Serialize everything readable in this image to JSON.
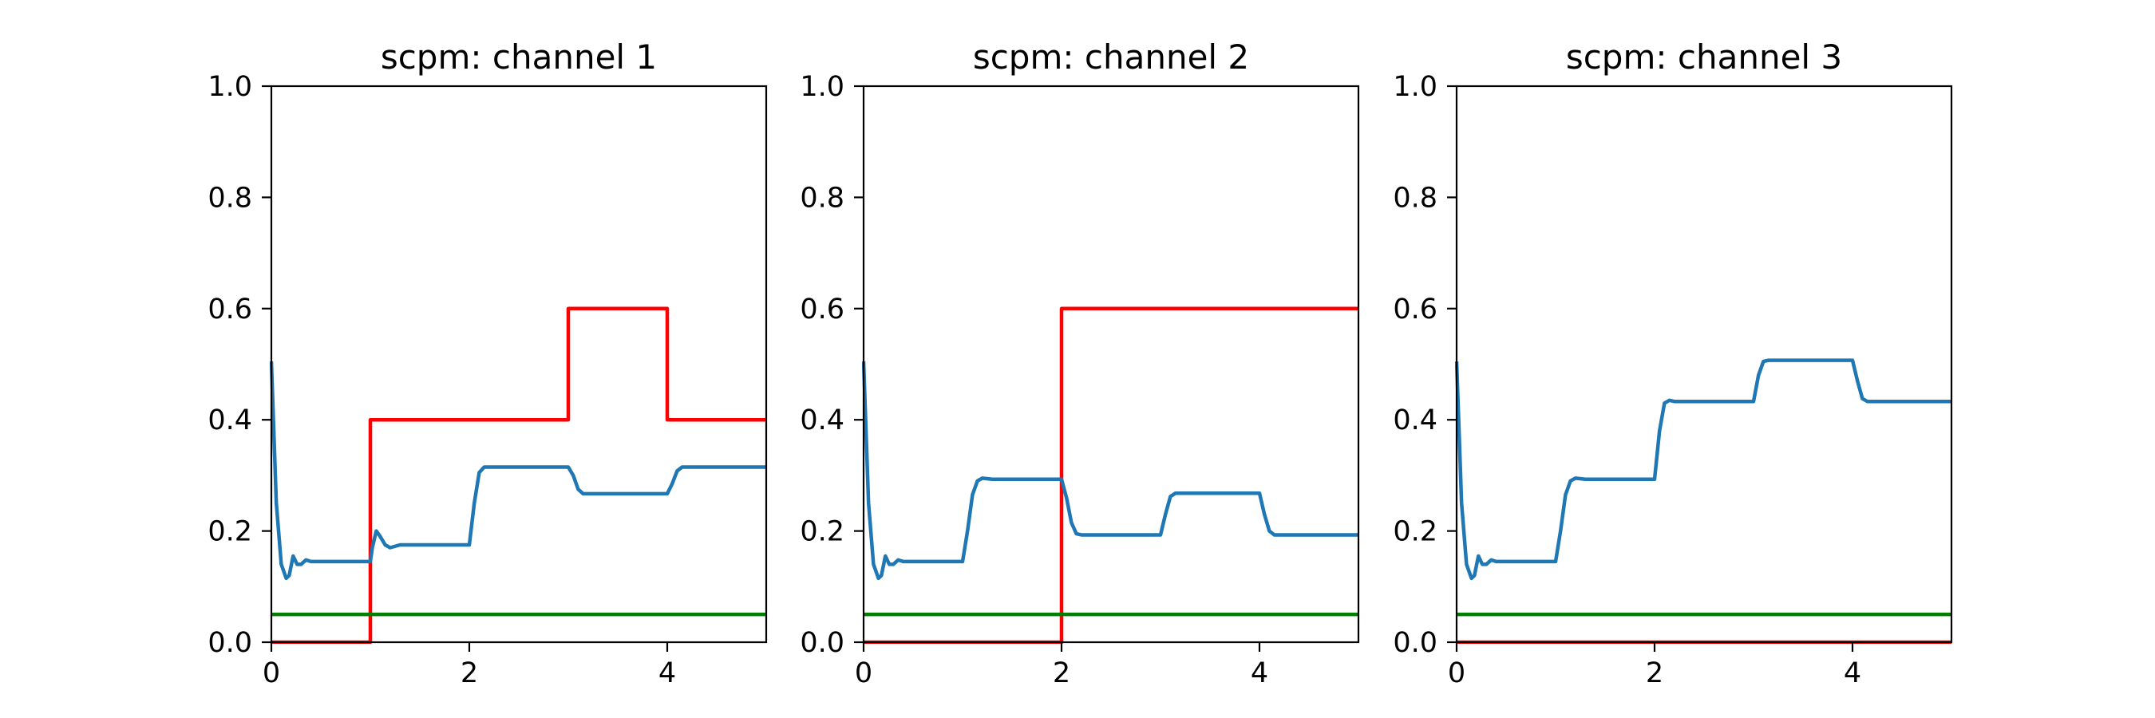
{
  "chart_data": [
    {
      "type": "line",
      "title": "scpm: channel 1",
      "xlabel": "",
      "ylabel": "",
      "xlim": [
        0,
        5
      ],
      "ylim": [
        0,
        1
      ],
      "xticks": [
        0,
        2,
        4
      ],
      "xtick_labels": [
        "0",
        "2",
        "4"
      ],
      "yticks": [
        0.0,
        0.2,
        0.4,
        0.6,
        0.8,
        1.0
      ],
      "ytick_labels": [
        "0.0",
        "0.2",
        "0.4",
        "0.6",
        "0.8",
        "1.0"
      ],
      "grid": false,
      "series": [
        {
          "color": "#ff0000",
          "x": [
            0,
            1,
            1,
            3,
            3,
            4,
            4,
            5
          ],
          "y": [
            0,
            0,
            0.4,
            0.4,
            0.6,
            0.6,
            0.4,
            0.4
          ]
        },
        {
          "color": "#008000",
          "x": [
            0,
            5
          ],
          "y": [
            0.05,
            0.05
          ]
        },
        {
          "color": "#1f77b4",
          "x": [
            0,
            0.05,
            0.1,
            0.15,
            0.18,
            0.22,
            0.26,
            0.3,
            0.35,
            0.4,
            0.5,
            0.7,
            1.0,
            1.02,
            1.06,
            1.1,
            1.15,
            1.2,
            1.3,
            1.5,
            2.0,
            2.05,
            2.1,
            2.15,
            2.2,
            2.5,
            3.0,
            3.05,
            3.1,
            3.15,
            3.2,
            3.5,
            4.0,
            4.05,
            4.1,
            4.15,
            4.2,
            4.5,
            5.0
          ],
          "y": [
            0.505,
            0.25,
            0.14,
            0.115,
            0.12,
            0.155,
            0.14,
            0.14,
            0.148,
            0.145,
            0.145,
            0.145,
            0.145,
            0.17,
            0.2,
            0.19,
            0.175,
            0.17,
            0.175,
            0.175,
            0.175,
            0.25,
            0.305,
            0.315,
            0.315,
            0.315,
            0.315,
            0.3,
            0.275,
            0.267,
            0.267,
            0.267,
            0.267,
            0.285,
            0.308,
            0.315,
            0.315,
            0.315,
            0.315
          ]
        }
      ]
    },
    {
      "type": "line",
      "title": "scpm: channel 2",
      "xlabel": "",
      "ylabel": "",
      "xlim": [
        0,
        5
      ],
      "ylim": [
        0,
        1
      ],
      "xticks": [
        0,
        2,
        4
      ],
      "xtick_labels": [
        "0",
        "2",
        "4"
      ],
      "yticks": [
        0.0,
        0.2,
        0.4,
        0.6,
        0.8,
        1.0
      ],
      "ytick_labels": [
        "0.0",
        "0.2",
        "0.4",
        "0.6",
        "0.8",
        "1.0"
      ],
      "grid": false,
      "series": [
        {
          "color": "#ff0000",
          "x": [
            0,
            2,
            2,
            5
          ],
          "y": [
            0,
            0,
            0.6,
            0.6
          ]
        },
        {
          "color": "#008000",
          "x": [
            0,
            5
          ],
          "y": [
            0.05,
            0.05
          ]
        },
        {
          "color": "#1f77b4",
          "x": [
            0,
            0.05,
            0.1,
            0.15,
            0.18,
            0.22,
            0.26,
            0.3,
            0.35,
            0.4,
            0.5,
            0.7,
            1.0,
            1.05,
            1.1,
            1.15,
            1.2,
            1.3,
            1.5,
            2.0,
            2.05,
            2.1,
            2.15,
            2.2,
            2.5,
            3.0,
            3.05,
            3.1,
            3.15,
            3.2,
            3.5,
            4.0,
            4.05,
            4.1,
            4.15,
            4.2,
            4.5,
            5.0
          ],
          "y": [
            0.505,
            0.25,
            0.14,
            0.115,
            0.12,
            0.155,
            0.14,
            0.14,
            0.148,
            0.145,
            0.145,
            0.145,
            0.145,
            0.2,
            0.265,
            0.29,
            0.295,
            0.293,
            0.293,
            0.293,
            0.26,
            0.215,
            0.195,
            0.193,
            0.193,
            0.193,
            0.23,
            0.262,
            0.268,
            0.268,
            0.268,
            0.268,
            0.23,
            0.2,
            0.193,
            0.193,
            0.193,
            0.193
          ]
        }
      ]
    },
    {
      "type": "line",
      "title": "scpm: channel 3",
      "xlabel": "",
      "ylabel": "",
      "xlim": [
        0,
        5
      ],
      "ylim": [
        0,
        1
      ],
      "xticks": [
        0,
        2,
        4
      ],
      "xtick_labels": [
        "0",
        "2",
        "4"
      ],
      "yticks": [
        0.0,
        0.2,
        0.4,
        0.6,
        0.8,
        1.0
      ],
      "ytick_labels": [
        "0.0",
        "0.2",
        "0.4",
        "0.6",
        "0.8",
        "1.0"
      ],
      "grid": false,
      "series": [
        {
          "color": "#ff0000",
          "x": [
            0,
            5
          ],
          "y": [
            0,
            0
          ]
        },
        {
          "color": "#008000",
          "x": [
            0,
            5
          ],
          "y": [
            0.05,
            0.05
          ]
        },
        {
          "color": "#1f77b4",
          "x": [
            0,
            0.05,
            0.1,
            0.15,
            0.18,
            0.22,
            0.26,
            0.3,
            0.35,
            0.4,
            0.5,
            0.7,
            1.0,
            1.05,
            1.1,
            1.15,
            1.2,
            1.3,
            1.5,
            2.0,
            2.05,
            2.1,
            2.15,
            2.2,
            2.5,
            3.0,
            3.05,
            3.1,
            3.15,
            3.2,
            3.5,
            4.0,
            4.05,
            4.1,
            4.15,
            4.2,
            4.5,
            5.0
          ],
          "y": [
            0.505,
            0.25,
            0.14,
            0.115,
            0.12,
            0.155,
            0.14,
            0.14,
            0.148,
            0.145,
            0.145,
            0.145,
            0.145,
            0.2,
            0.265,
            0.29,
            0.295,
            0.293,
            0.293,
            0.293,
            0.38,
            0.43,
            0.435,
            0.433,
            0.433,
            0.433,
            0.48,
            0.505,
            0.507,
            0.507,
            0.507,
            0.507,
            0.47,
            0.438,
            0.433,
            0.433,
            0.433,
            0.433
          ]
        }
      ]
    }
  ]
}
